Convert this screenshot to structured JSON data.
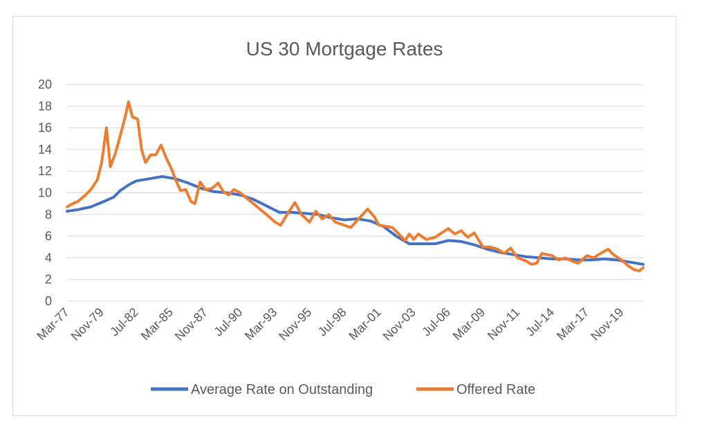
{
  "chart_data": {
    "type": "line",
    "title": "US 30 Mortgage Rates",
    "xlabel": "",
    "ylabel": "",
    "ylim": [
      0,
      20
    ],
    "yticks": [
      0,
      2,
      4,
      6,
      8,
      10,
      12,
      14,
      16,
      18,
      20
    ],
    "xlim": [
      1977.17,
      2021.5
    ],
    "x_tick_labels": [
      "Mar-77",
      "Nov-79",
      "Jul-82",
      "Mar-85",
      "Nov-87",
      "Jul-90",
      "Mar-93",
      "Nov-95",
      "Jul-98",
      "Mar-01",
      "Nov-03",
      "Jul-06",
      "Mar-09",
      "Nov-11",
      "Jul-14",
      "Mar-17",
      "Nov-19"
    ],
    "x_tick_values": [
      1977.17,
      1979.83,
      1982.5,
      1985.17,
      1987.83,
      1990.5,
      1993.17,
      1995.83,
      1998.5,
      2001.17,
      2003.83,
      2006.5,
      2009.17,
      2011.83,
      2014.5,
      2017.17,
      2019.83
    ],
    "grid": true,
    "legend_position": "bottom",
    "colors": {
      "average": "#4472c4",
      "offered": "#ed7d31",
      "grid": "#d9d9d9",
      "axis": "#d9d9d9"
    },
    "series": [
      {
        "name": "Average Rate on Outstanding",
        "color": "#4472c4",
        "points": [
          [
            1977.17,
            8.3
          ],
          [
            1978.0,
            8.45
          ],
          [
            1979.0,
            8.7
          ],
          [
            1980.0,
            9.2
          ],
          [
            1980.75,
            9.6
          ],
          [
            1981.25,
            10.2
          ],
          [
            1982.0,
            10.8
          ],
          [
            1982.5,
            11.1
          ],
          [
            1983.5,
            11.3
          ],
          [
            1984.5,
            11.5
          ],
          [
            1985.5,
            11.3
          ],
          [
            1986.5,
            10.9
          ],
          [
            1987.5,
            10.4
          ],
          [
            1988.5,
            10.1
          ],
          [
            1989.5,
            10.0
          ],
          [
            1990.5,
            9.8
          ],
          [
            1991.5,
            9.4
          ],
          [
            1992.5,
            8.8
          ],
          [
            1993.5,
            8.2
          ],
          [
            1994.5,
            8.2
          ],
          [
            1995.5,
            8.1
          ],
          [
            1996.5,
            8.0
          ],
          [
            1997.5,
            7.7
          ],
          [
            1998.5,
            7.5
          ],
          [
            1999.5,
            7.6
          ],
          [
            2000.5,
            7.4
          ],
          [
            2001.5,
            6.9
          ],
          [
            2002.5,
            6.0
          ],
          [
            2003.5,
            5.3
          ],
          [
            2004.5,
            5.3
          ],
          [
            2005.5,
            5.3
          ],
          [
            2006.5,
            5.6
          ],
          [
            2007.5,
            5.5
          ],
          [
            2008.5,
            5.2
          ],
          [
            2009.5,
            4.8
          ],
          [
            2010.5,
            4.5
          ],
          [
            2011.5,
            4.3
          ],
          [
            2012.5,
            4.1
          ],
          [
            2013.5,
            4.0
          ],
          [
            2014.5,
            3.9
          ],
          [
            2015.5,
            3.9
          ],
          [
            2016.5,
            3.8
          ],
          [
            2017.5,
            3.8
          ],
          [
            2018.5,
            3.9
          ],
          [
            2019.5,
            3.8
          ],
          [
            2020.5,
            3.6
          ],
          [
            2021.5,
            3.4
          ]
        ]
      },
      {
        "name": "Offered Rate",
        "color": "#ed7d31",
        "points": [
          [
            1977.17,
            8.7
          ],
          [
            1977.6,
            9.0
          ],
          [
            1978.0,
            9.2
          ],
          [
            1978.5,
            9.7
          ],
          [
            1979.0,
            10.3
          ],
          [
            1979.5,
            11.2
          ],
          [
            1979.83,
            12.8
          ],
          [
            1980.2,
            16.0
          ],
          [
            1980.5,
            12.4
          ],
          [
            1980.9,
            13.7
          ],
          [
            1981.2,
            15.0
          ],
          [
            1981.6,
            16.8
          ],
          [
            1981.9,
            18.4
          ],
          [
            1982.2,
            17.0
          ],
          [
            1982.6,
            16.8
          ],
          [
            1982.9,
            14.0
          ],
          [
            1983.2,
            12.8
          ],
          [
            1983.6,
            13.5
          ],
          [
            1984.0,
            13.5
          ],
          [
            1984.4,
            14.4
          ],
          [
            1984.8,
            13.2
          ],
          [
            1985.17,
            12.3
          ],
          [
            1985.6,
            11.0
          ],
          [
            1985.9,
            10.2
          ],
          [
            1986.3,
            10.3
          ],
          [
            1986.7,
            9.2
          ],
          [
            1987.0,
            9.0
          ],
          [
            1987.4,
            11.0
          ],
          [
            1987.83,
            10.3
          ],
          [
            1988.3,
            10.4
          ],
          [
            1988.8,
            10.9
          ],
          [
            1989.2,
            10.1
          ],
          [
            1989.6,
            9.8
          ],
          [
            1990.0,
            10.3
          ],
          [
            1990.5,
            10.0
          ],
          [
            1991.0,
            9.5
          ],
          [
            1991.5,
            9.0
          ],
          [
            1992.0,
            8.5
          ],
          [
            1992.5,
            8.0
          ],
          [
            1993.17,
            7.3
          ],
          [
            1993.6,
            7.0
          ],
          [
            1994.2,
            8.2
          ],
          [
            1994.7,
            9.1
          ],
          [
            1995.2,
            8.0
          ],
          [
            1995.83,
            7.3
          ],
          [
            1996.3,
            8.3
          ],
          [
            1996.8,
            7.6
          ],
          [
            1997.3,
            8.0
          ],
          [
            1997.8,
            7.3
          ],
          [
            1998.5,
            7.0
          ],
          [
            1999.0,
            6.8
          ],
          [
            1999.6,
            7.6
          ],
          [
            2000.3,
            8.5
          ],
          [
            2000.8,
            7.8
          ],
          [
            2001.17,
            7.0
          ],
          [
            2001.7,
            6.9
          ],
          [
            2002.2,
            6.8
          ],
          [
            2002.7,
            6.2
          ],
          [
            2003.17,
            5.6
          ],
          [
            2003.5,
            6.2
          ],
          [
            2003.83,
            5.7
          ],
          [
            2004.2,
            6.2
          ],
          [
            2004.8,
            5.7
          ],
          [
            2005.5,
            5.9
          ],
          [
            2006.0,
            6.3
          ],
          [
            2006.5,
            6.7
          ],
          [
            2007.0,
            6.2
          ],
          [
            2007.5,
            6.5
          ],
          [
            2008.0,
            5.9
          ],
          [
            2008.5,
            6.3
          ],
          [
            2009.17,
            5.0
          ],
          [
            2009.7,
            5.0
          ],
          [
            2010.3,
            4.8
          ],
          [
            2010.8,
            4.4
          ],
          [
            2011.3,
            4.9
          ],
          [
            2011.83,
            4.0
          ],
          [
            2012.5,
            3.7
          ],
          [
            2012.9,
            3.4
          ],
          [
            2013.3,
            3.5
          ],
          [
            2013.7,
            4.4
          ],
          [
            2014.5,
            4.2
          ],
          [
            2015.0,
            3.8
          ],
          [
            2015.5,
            4.0
          ],
          [
            2016.0,
            3.7
          ],
          [
            2016.5,
            3.5
          ],
          [
            2017.17,
            4.2
          ],
          [
            2017.7,
            4.0
          ],
          [
            2018.2,
            4.4
          ],
          [
            2018.8,
            4.8
          ],
          [
            2019.2,
            4.3
          ],
          [
            2019.83,
            3.8
          ],
          [
            2020.3,
            3.3
          ],
          [
            2020.8,
            2.9
          ],
          [
            2021.2,
            2.8
          ],
          [
            2021.5,
            3.1
          ]
        ]
      }
    ]
  }
}
